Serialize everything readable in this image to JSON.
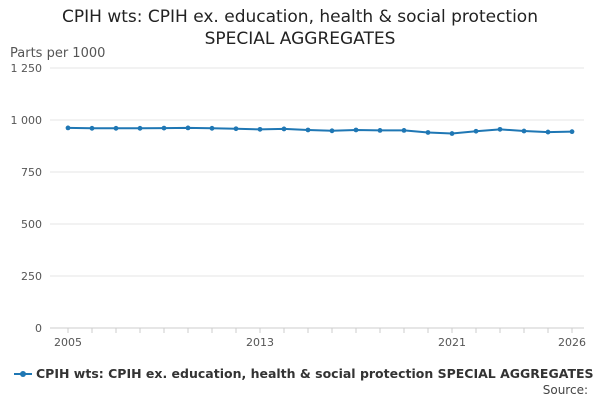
{
  "header": {
    "title_line1": "CPIH wts: CPIH ex. education, health & social protection",
    "title_line2": "SPECIAL AGGREGATES"
  },
  "footer": {
    "source_label": "Source:"
  },
  "colors": {
    "series": "#1f77b4",
    "grid": "#e6e6e6",
    "axis": "#cccccc"
  },
  "chart_data": {
    "type": "line",
    "title": "CPIH wts: CPIH ex. education, health & social protection SPECIAL AGGREGATES",
    "ylabel": "Parts per 1000",
    "xlabel": "",
    "ylim": [
      0,
      1250
    ],
    "xlim": [
      2005,
      2026
    ],
    "yticks": [
      0,
      250,
      500,
      750,
      1000,
      1250
    ],
    "ytick_labels": [
      "0",
      "250",
      "500",
      "750",
      "1 000",
      "1 250"
    ],
    "xticks": [
      2005,
      2013,
      2021,
      2026
    ],
    "xtick_labels": [
      "2005",
      "2013",
      "2021",
      "2026"
    ],
    "grid": true,
    "legend_position": "bottom",
    "series": [
      {
        "name": "CPIH wts: CPIH ex. education, health & social protection SPECIAL AGGREGATES",
        "x": [
          2005,
          2006,
          2007,
          2008,
          2009,
          2010,
          2011,
          2012,
          2013,
          2014,
          2015,
          2016,
          2017,
          2018,
          2019,
          2020,
          2021,
          2022,
          2023,
          2024,
          2025,
          2026
        ],
        "values": [
          962,
          960,
          960,
          960,
          961,
          962,
          960,
          958,
          955,
          957,
          952,
          948,
          952,
          950,
          950,
          940,
          935,
          946,
          955,
          947,
          942,
          944
        ]
      }
    ]
  }
}
